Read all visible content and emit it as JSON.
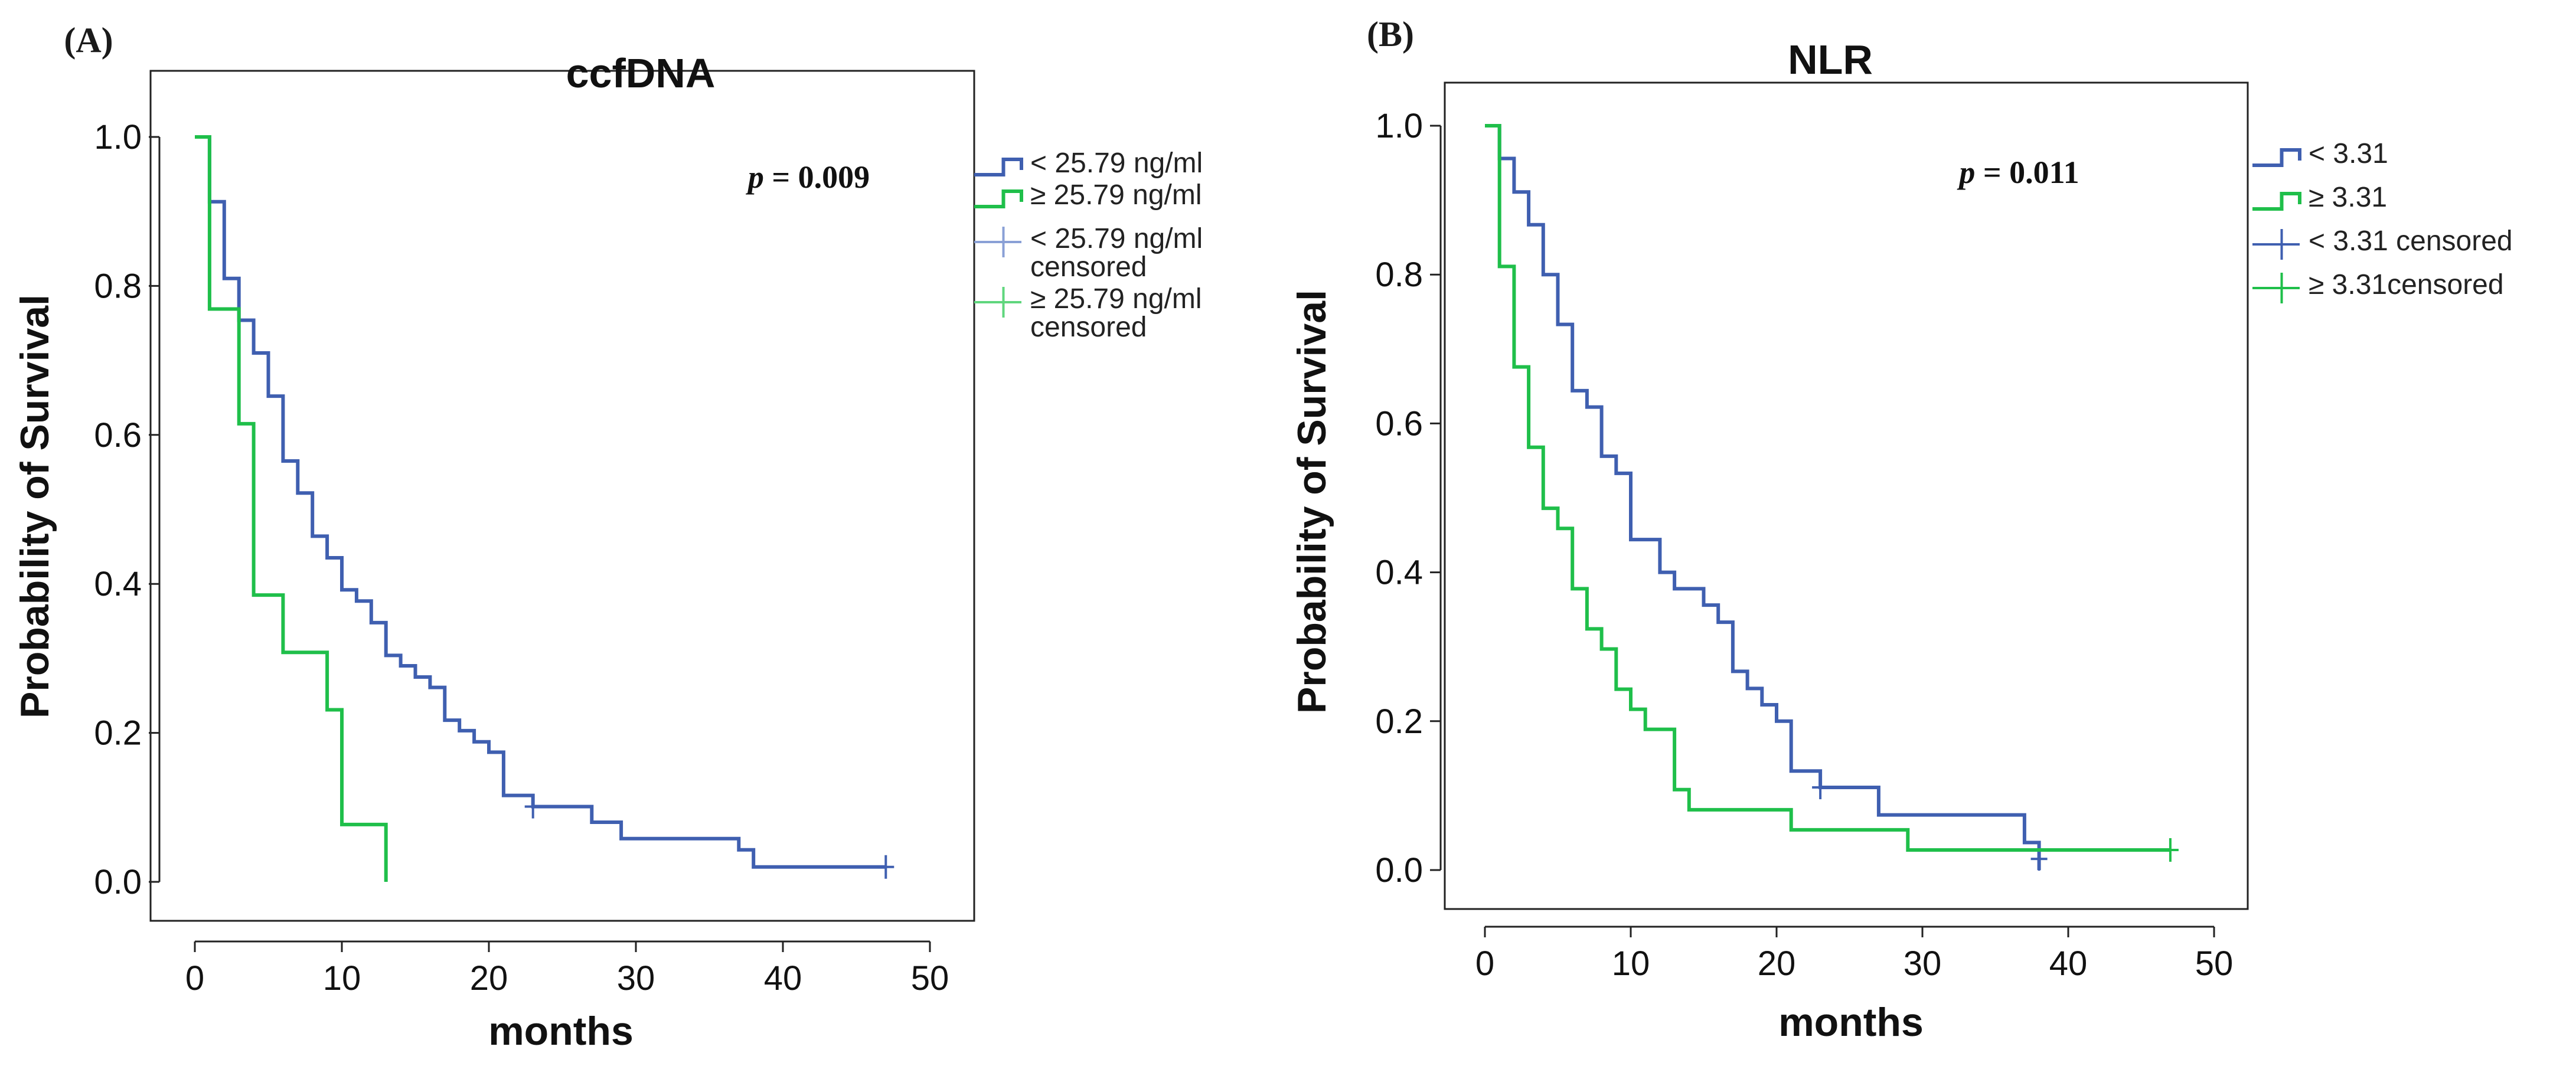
{
  "chart_data": [
    {
      "type": "line",
      "panel_label": "(A)",
      "title": "ccfDNA",
      "xlabel": "months",
      "ylabel": "Probability of Survival",
      "xlim": [
        0,
        50
      ],
      "ylim": [
        0,
        1
      ],
      "xticks": [
        "0",
        "10",
        "20",
        "30",
        "40",
        "50"
      ],
      "yticks": [
        "0.0",
        "0.2",
        "0.4",
        "0.6",
        "0.8",
        "1.0"
      ],
      "pvalue": {
        "p": "p",
        "eq": " = 0.009"
      },
      "legend_position": "outside-right",
      "series": [
        {
          "name": "< 25.79 ng/ml",
          "color": "#3f5fb0",
          "steps": [
            [
              0,
              1.0
            ],
            [
              1,
              0.913
            ],
            [
              2,
              0.81
            ],
            [
              3,
              0.754
            ],
            [
              4,
              0.71
            ],
            [
              5,
              0.652
            ],
            [
              6,
              0.565
            ],
            [
              7,
              0.522
            ],
            [
              8,
              0.464
            ],
            [
              9,
              0.435
            ],
            [
              10,
              0.392
            ],
            [
              11,
              0.377
            ],
            [
              12,
              0.348
            ],
            [
              13,
              0.304
            ],
            [
              14,
              0.29
            ],
            [
              15,
              0.275
            ],
            [
              16,
              0.261
            ],
            [
              17,
              0.217
            ],
            [
              18,
              0.203
            ],
            [
              19,
              0.188
            ],
            [
              20,
              0.174
            ],
            [
              21,
              0.116
            ],
            [
              23,
              0.101
            ],
            [
              27,
              0.08
            ],
            [
              29,
              0.058
            ],
            [
              37,
              0.043
            ],
            [
              38,
              0.02
            ],
            [
              47,
              0.02
            ]
          ],
          "censored": [
            [
              23,
              0.101
            ],
            [
              47,
              0.02
            ]
          ]
        },
        {
          "name": "≥ 25.79 ng/ml",
          "color": "#1fbf4a",
          "steps": [
            [
              0,
              1.0
            ],
            [
              1,
              0.769
            ],
            [
              3,
              0.615
            ],
            [
              4,
              0.385
            ],
            [
              6,
              0.308
            ],
            [
              9,
              0.231
            ],
            [
              10,
              0.077
            ],
            [
              13,
              0.0
            ]
          ],
          "censored": []
        }
      ],
      "legend": [
        {
          "kind": "line",
          "label_lines": [
            "< 25.79 ng/ml"
          ],
          "color": "#3f5fb0"
        },
        {
          "kind": "line",
          "label_lines": [
            "≥ 25.79 ng/ml"
          ],
          "color": "#1fbf4a"
        },
        {
          "kind": "censor",
          "label_lines": [
            "< 25.79 ng/ml",
            "censored"
          ],
          "color": "#8aa0d6"
        },
        {
          "kind": "censor",
          "label_lines": [
            "≥ 25.79 ng/ml",
            "censored"
          ],
          "color": "#5fd67d"
        }
      ]
    },
    {
      "type": "line",
      "panel_label": "(B)",
      "title": "NLR",
      "xlabel": "months",
      "ylabel": "Probability of Survival",
      "xlim": [
        0,
        50
      ],
      "ylim": [
        0,
        1
      ],
      "xticks": [
        "0",
        "10",
        "20",
        "30",
        "40",
        "50"
      ],
      "yticks": [
        "0.0",
        "0.2",
        "0.4",
        "0.6",
        "0.8",
        "1.0"
      ],
      "pvalue": {
        "p": "p",
        "eq": " = 0.011"
      },
      "legend_position": "outside-right",
      "series": [
        {
          "name": "< 3.31",
          "color": "#3f5fb0",
          "steps": [
            [
              0,
              1.0
            ],
            [
              1,
              0.956
            ],
            [
              2,
              0.911
            ],
            [
              3,
              0.867
            ],
            [
              4,
              0.8
            ],
            [
              5,
              0.733
            ],
            [
              6,
              0.644
            ],
            [
              7,
              0.622
            ],
            [
              8,
              0.556
            ],
            [
              9,
              0.533
            ],
            [
              10,
              0.444
            ],
            [
              12,
              0.4
            ],
            [
              13,
              0.378
            ],
            [
              15,
              0.356
            ],
            [
              16,
              0.333
            ],
            [
              17,
              0.267
            ],
            [
              18,
              0.244
            ],
            [
              19,
              0.222
            ],
            [
              20,
              0.2
            ],
            [
              21,
              0.133
            ],
            [
              23,
              0.111
            ],
            [
              27,
              0.074
            ],
            [
              37,
              0.037
            ],
            [
              38,
              0.0
            ]
          ],
          "censored": [
            [
              23,
              0.111
            ],
            [
              38,
              0.015
            ]
          ]
        },
        {
          "name": "≥ 3.31",
          "color": "#1fbf4a",
          "steps": [
            [
              0,
              1.0
            ],
            [
              1,
              0.811
            ],
            [
              2,
              0.676
            ],
            [
              3,
              0.568
            ],
            [
              4,
              0.486
            ],
            [
              5,
              0.459
            ],
            [
              6,
              0.378
            ],
            [
              7,
              0.324
            ],
            [
              8,
              0.297
            ],
            [
              9,
              0.243
            ],
            [
              10,
              0.216
            ],
            [
              11,
              0.189
            ],
            [
              13,
              0.108
            ],
            [
              14,
              0.081
            ],
            [
              21,
              0.054
            ],
            [
              29,
              0.027
            ],
            [
              47,
              0.027
            ]
          ],
          "censored": [
            [
              47,
              0.027
            ]
          ]
        }
      ],
      "legend": [
        {
          "kind": "line",
          "label_lines": [
            "< 3.31"
          ],
          "color": "#3f5fb0"
        },
        {
          "kind": "line",
          "label_lines": [
            "≥ 3.31"
          ],
          "color": "#1fbf4a"
        },
        {
          "kind": "censor",
          "label_lines": [
            "< 3.31 censored"
          ],
          "color": "#3f5fb0"
        },
        {
          "kind": "censor",
          "label_lines": [
            "≥ 3.31censored"
          ],
          "color": "#1fbf4a"
        }
      ]
    }
  ]
}
